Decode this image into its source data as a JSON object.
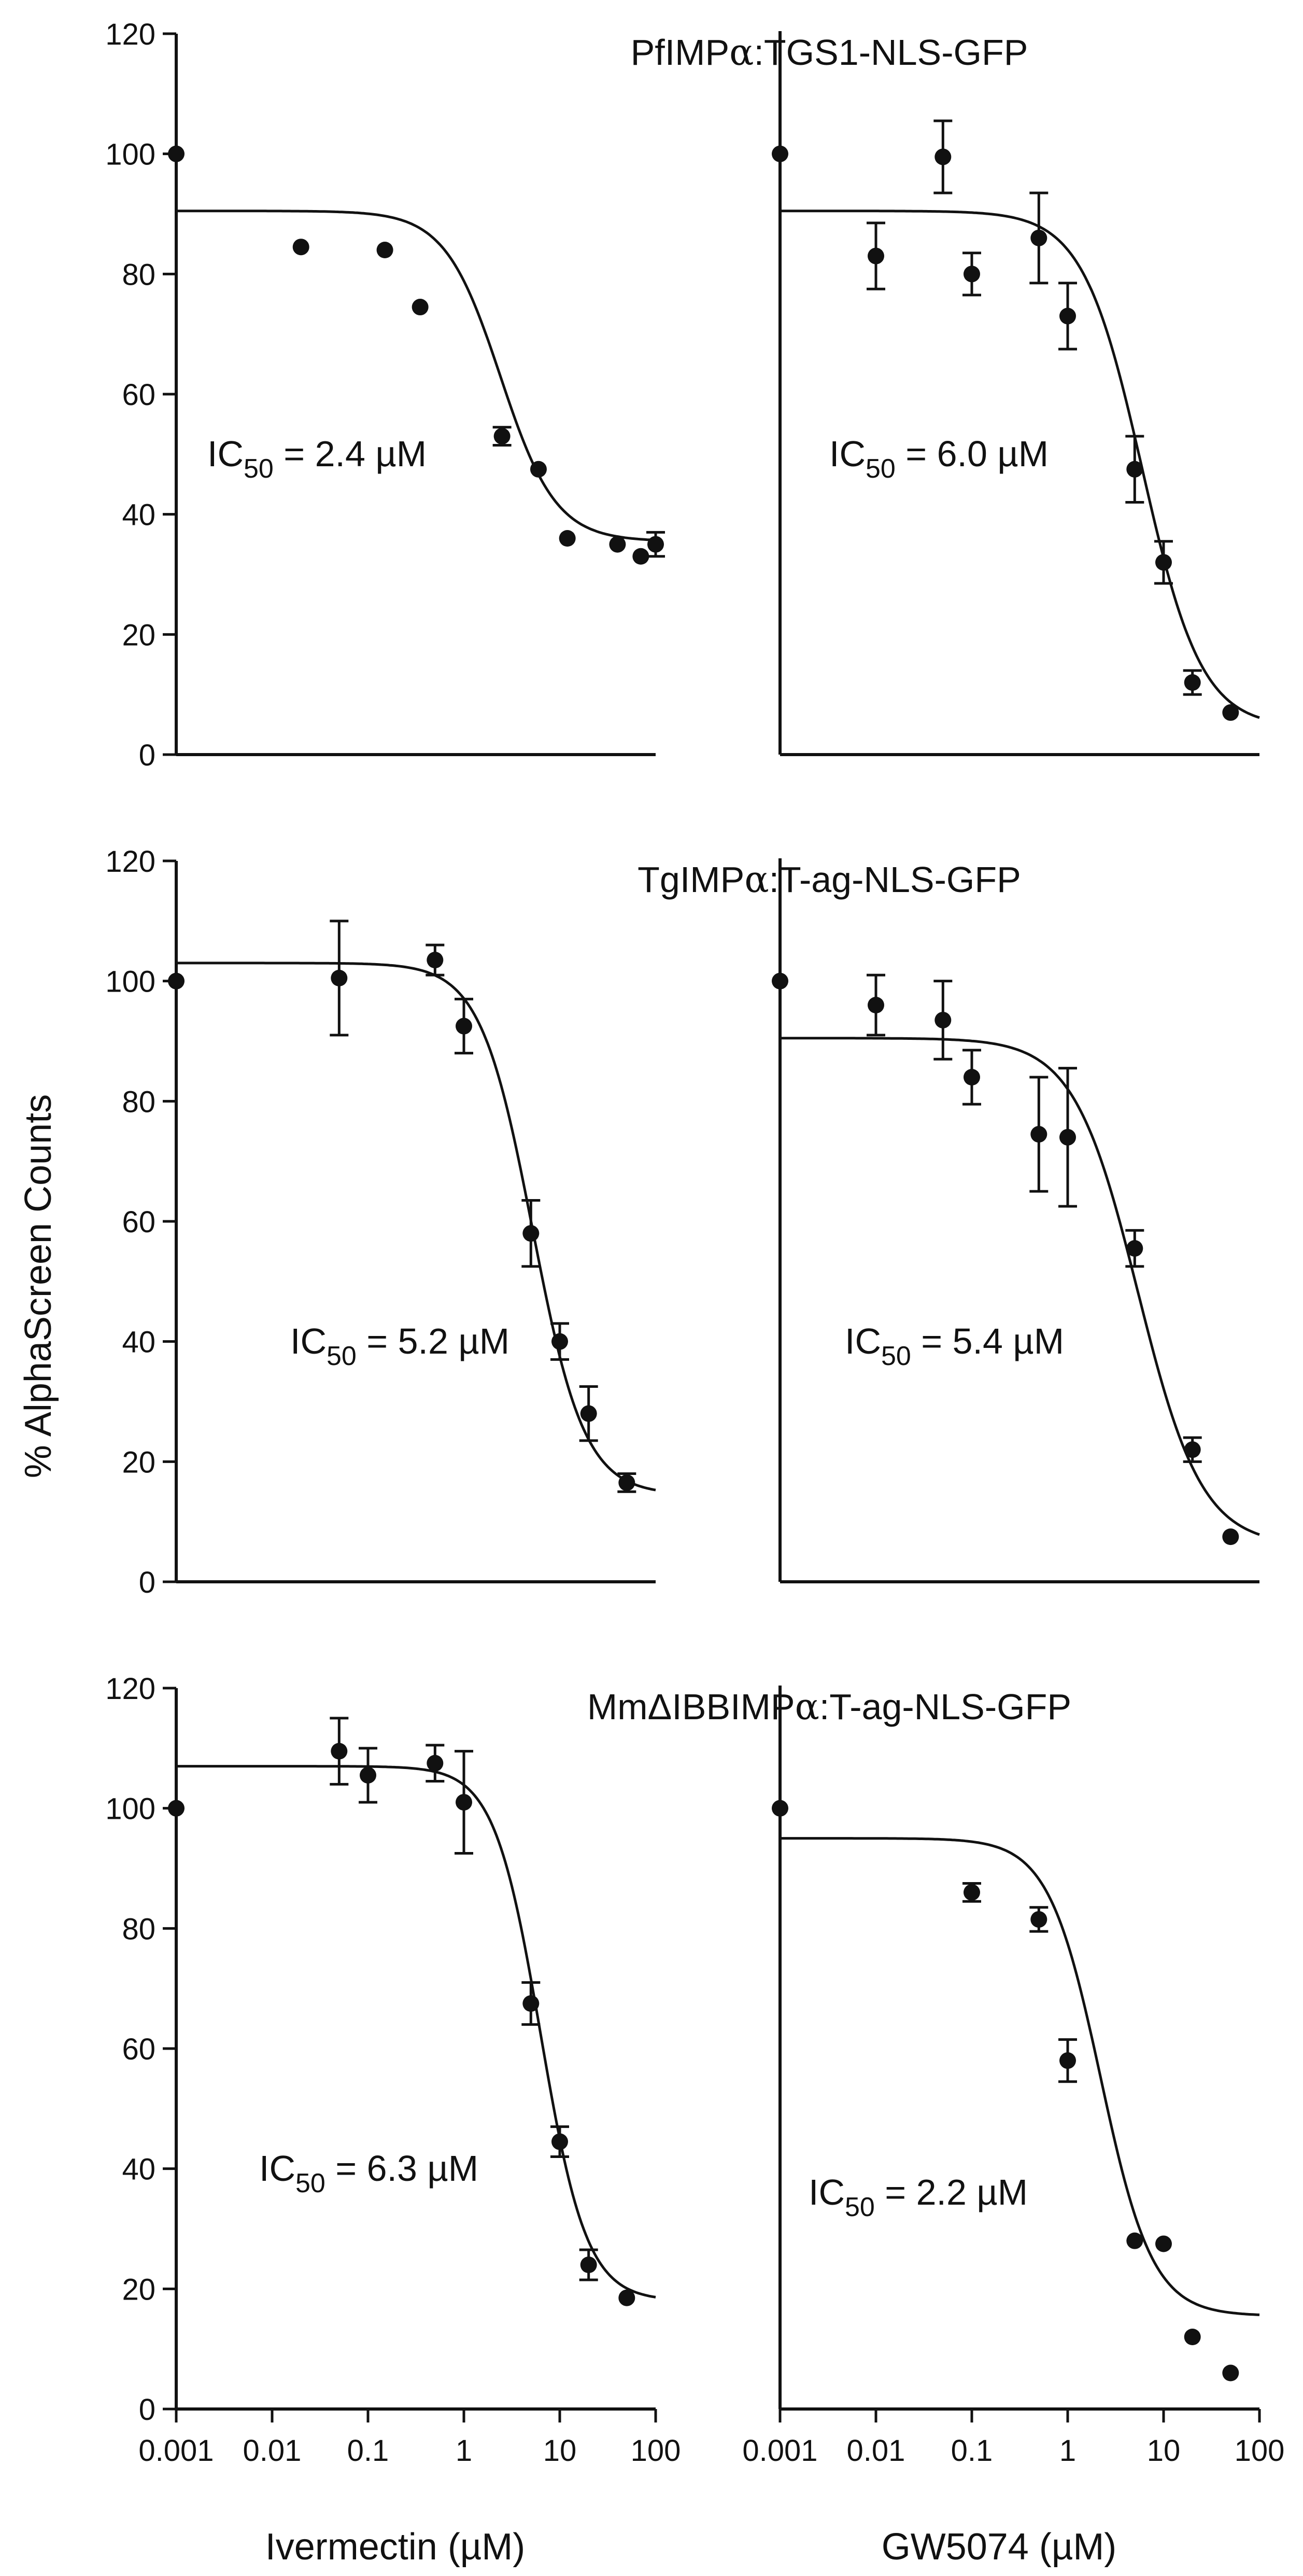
{
  "chart_data": {
    "type": "scatter",
    "ylabel": "% AlphaScreen Counts",
    "xlabels": [
      "Ivermectin (µM)",
      "GW5074 (µM)"
    ],
    "x_tick_labels": [
      "0.001",
      "0.01",
      "0.1",
      "1",
      "10",
      "100"
    ],
    "y_tick_labels": [
      "0",
      "20",
      "40",
      "60",
      "80",
      "100",
      "120"
    ],
    "xscale": "log",
    "xlim": [
      0.001,
      100
    ],
    "ylim": [
      0,
      120
    ],
    "rows": [
      {
        "title_prefix": "PfIMP",
        "title_alpha": "α",
        "title_suffix": ":TGS1-NLS-GFP",
        "panels": [
          {
            "drug": "Ivermectin",
            "ic50_prefix": "IC",
            "ic50_sub": "50",
            "ic50_suffix": " = 2.4 µM",
            "ic50_value": 2.4,
            "fit": {
              "top": 90.5,
              "bottom": 35.5,
              "ic50": 2.4,
              "hill": 1.5
            },
            "points": [
              {
                "x": 0.001,
                "y": 100,
                "err": 0
              },
              {
                "x": 0.02,
                "y": 84.5,
                "err": 0
              },
              {
                "x": 0.15,
                "y": 84,
                "err": 0
              },
              {
                "x": 0.35,
                "y": 74.5,
                "err": 0
              },
              {
                "x": 2.5,
                "y": 53,
                "err": 1.5
              },
              {
                "x": 6,
                "y": 47.5,
                "err": 0
              },
              {
                "x": 12,
                "y": 36,
                "err": 0
              },
              {
                "x": 40,
                "y": 35,
                "err": 0
              },
              {
                "x": 70,
                "y": 33,
                "err": 0
              },
              {
                "x": 100,
                "y": 35,
                "err": 2
              }
            ]
          },
          {
            "drug": "GW5074",
            "ic50_prefix": "IC",
            "ic50_sub": "50",
            "ic50_suffix": " = 6.0 µM",
            "ic50_value": 6.0,
            "fit": {
              "top": 90.5,
              "bottom": 4.5,
              "ic50": 6.0,
              "hill": 1.4
            },
            "points": [
              {
                "x": 0.001,
                "y": 100,
                "err": 0
              },
              {
                "x": 0.01,
                "y": 83,
                "err": 5.5
              },
              {
                "x": 0.05,
                "y": 99.5,
                "err": 6
              },
              {
                "x": 0.1,
                "y": 80,
                "err": 3.5
              },
              {
                "x": 0.5,
                "y": 86,
                "err": 7.5
              },
              {
                "x": 1,
                "y": 73,
                "err": 5.5
              },
              {
                "x": 5,
                "y": 47.5,
                "err": 5.5
              },
              {
                "x": 10,
                "y": 32,
                "err": 3.5
              },
              {
                "x": 20,
                "y": 12,
                "err": 2
              },
              {
                "x": 50,
                "y": 7,
                "err": 0
              }
            ]
          }
        ]
      },
      {
        "title_prefix": "TgIMP",
        "title_alpha": "α",
        "title_suffix": ":T-ag-NLS-GFP",
        "panels": [
          {
            "drug": "Ivermectin",
            "ic50_prefix": "IC",
            "ic50_sub": "50",
            "ic50_suffix": " = 5.2 µM",
            "ic50_value": 5.2,
            "fit": {
              "top": 103,
              "bottom": 14.5,
              "ic50": 5.2,
              "hill": 1.6
            },
            "points": [
              {
                "x": 0.001,
                "y": 100,
                "err": 0
              },
              {
                "x": 0.05,
                "y": 100.5,
                "err": 9.5
              },
              {
                "x": 0.5,
                "y": 103.5,
                "err": 2.5
              },
              {
                "x": 1,
                "y": 92.5,
                "err": 4.5
              },
              {
                "x": 5,
                "y": 58,
                "err": 5.5
              },
              {
                "x": 10,
                "y": 40,
                "err": 3
              },
              {
                "x": 20,
                "y": 28,
                "err": 4.5
              },
              {
                "x": 50,
                "y": 16.5,
                "err": 1.5
              }
            ]
          },
          {
            "drug": "GW5074",
            "ic50_prefix": "IC",
            "ic50_sub": "50",
            "ic50_suffix": " = 5.4 µM",
            "ic50_value": 5.4,
            "fit": {
              "top": 90.5,
              "bottom": 6,
              "ic50": 5.4,
              "hill": 1.3
            },
            "points": [
              {
                "x": 0.001,
                "y": 100,
                "err": 0
              },
              {
                "x": 0.01,
                "y": 96,
                "err": 5
              },
              {
                "x": 0.05,
                "y": 93.5,
                "err": 6.5
              },
              {
                "x": 0.1,
                "y": 84,
                "err": 4.5
              },
              {
                "x": 0.5,
                "y": 74.5,
                "err": 9.5
              },
              {
                "x": 1,
                "y": 74,
                "err": 11.5
              },
              {
                "x": 5,
                "y": 55.5,
                "err": 3
              },
              {
                "x": 20,
                "y": 22,
                "err": 2
              },
              {
                "x": 50,
                "y": 7.5,
                "err": 0
              }
            ]
          }
        ]
      },
      {
        "title_prefix": "MmΔIBBIMP",
        "title_alpha": "α",
        "title_suffix": ":T-ag-NLS-GFP",
        "panels": [
          {
            "drug": "Ivermectin",
            "ic50_prefix": "IC",
            "ic50_sub": "50",
            "ic50_suffix": " = 6.3 µM",
            "ic50_value": 6.3,
            "fit": {
              "top": 107,
              "bottom": 18,
              "ic50": 6.3,
              "hill": 1.8
            },
            "points": [
              {
                "x": 0.001,
                "y": 100,
                "err": 0
              },
              {
                "x": 0.05,
                "y": 109.5,
                "err": 5.5
              },
              {
                "x": 0.1,
                "y": 105.5,
                "err": 4.5
              },
              {
                "x": 0.5,
                "y": 107.5,
                "err": 3
              },
              {
                "x": 1,
                "y": 101,
                "err": 8.5
              },
              {
                "x": 5,
                "y": 67.5,
                "err": 3.5
              },
              {
                "x": 10,
                "y": 44.5,
                "err": 2.5
              },
              {
                "x": 20,
                "y": 24,
                "err": 2.5
              },
              {
                "x": 50,
                "y": 18.5,
                "err": 0
              }
            ]
          },
          {
            "drug": "GW5074",
            "ic50_prefix": "IC",
            "ic50_sub": "50",
            "ic50_suffix": " = 2.2 µM",
            "ic50_value": 2.2,
            "fit": {
              "top": 95,
              "bottom": 15.5,
              "ic50": 2.2,
              "hill": 1.6
            },
            "points": [
              {
                "x": 0.001,
                "y": 100,
                "err": 0
              },
              {
                "x": 0.1,
                "y": 86,
                "err": 1.5
              },
              {
                "x": 0.5,
                "y": 81.5,
                "err": 2
              },
              {
                "x": 1,
                "y": 58,
                "err": 3.5
              },
              {
                "x": 5,
                "y": 28,
                "err": 0
              },
              {
                "x": 10,
                "y": 27.5,
                "err": 0
              },
              {
                "x": 20,
                "y": 12,
                "err": 0
              },
              {
                "x": 50,
                "y": 6,
                "err": 0
              }
            ]
          }
        ]
      }
    ]
  }
}
